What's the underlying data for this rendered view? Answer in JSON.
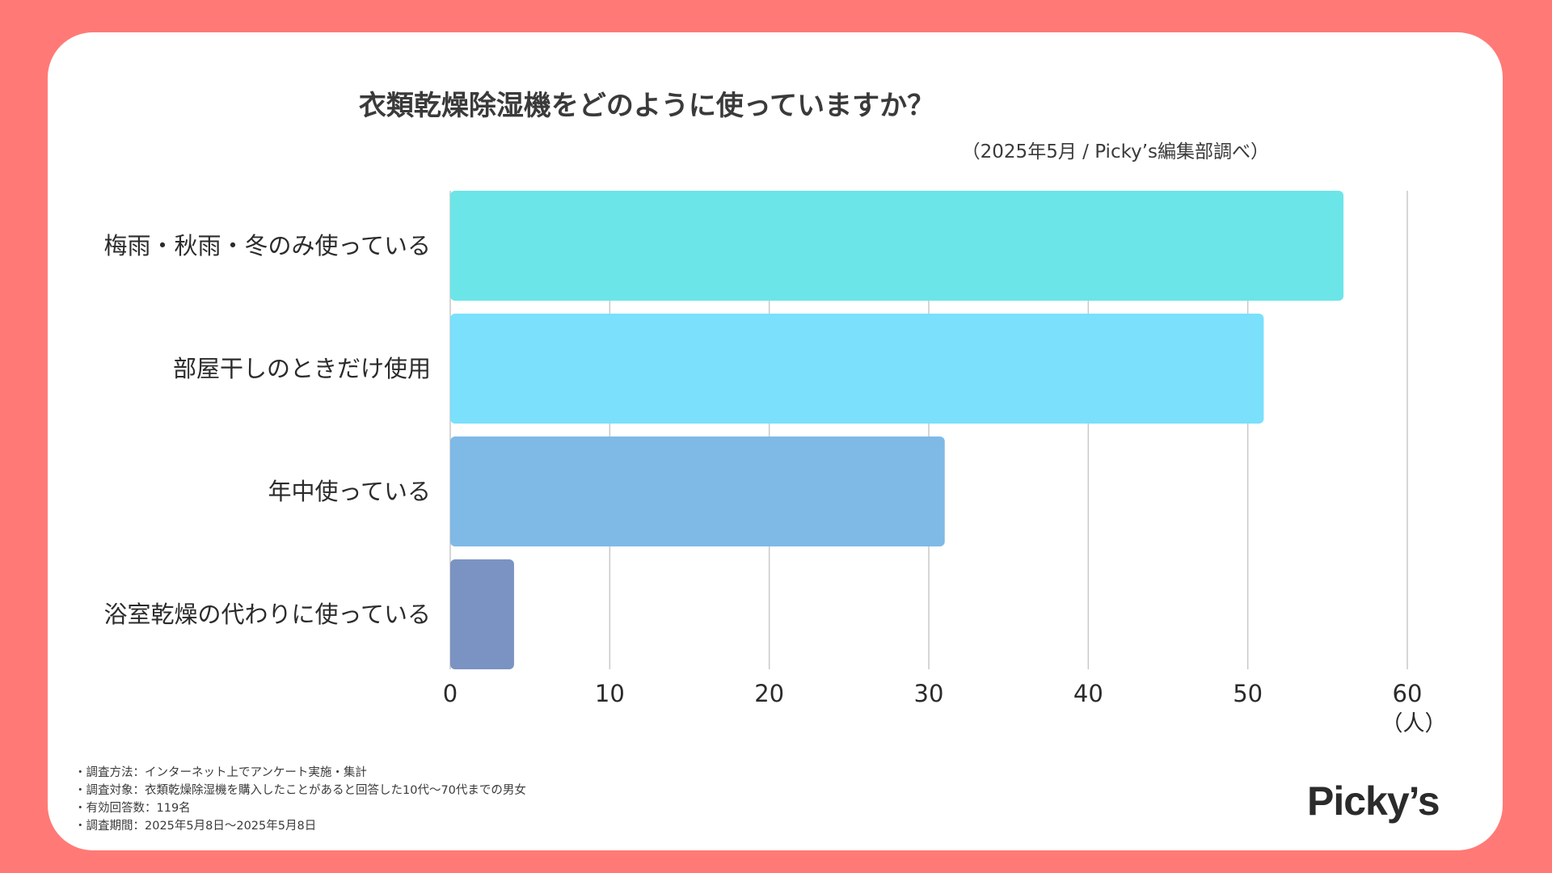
{
  "chart_data": {
    "type": "bar",
    "orientation": "horizontal",
    "title": "衣類乾燥除湿機をどのように使っていますか？",
    "subtitle": "（2025年5月 / Picky’s編集部調べ）",
    "categories": [
      "梅雨・秋雨・冬のみ使っている",
      "部屋干しのときだけ使用",
      "年中使っている",
      "浴室乾燥の代わりに使っている"
    ],
    "values": [
      56,
      51,
      31,
      4
    ],
    "colors": [
      "#6ce5e8",
      "#7ae0fc",
      "#7fb9e6",
      "#7b93c2"
    ],
    "x_ticks": [
      "0",
      "10",
      "20",
      "30",
      "40",
      "50",
      "60"
    ],
    "xlim": [
      0,
      60
    ],
    "xlabel": "（人）",
    "grid": true
  },
  "notes": [
    "・調査方法：インターネット上でアンケート実施・集計",
    "・調査対象：衣類乾燥除湿機を購入したことがあると回答した10代〜70代までの男女",
    "・有効回答数：119名",
    "・調査期間：2025年5月8日〜2025年5月8日"
  ],
  "brand": {
    "logo_text": "Picky’s",
    "background_color": "#ff7a76"
  }
}
